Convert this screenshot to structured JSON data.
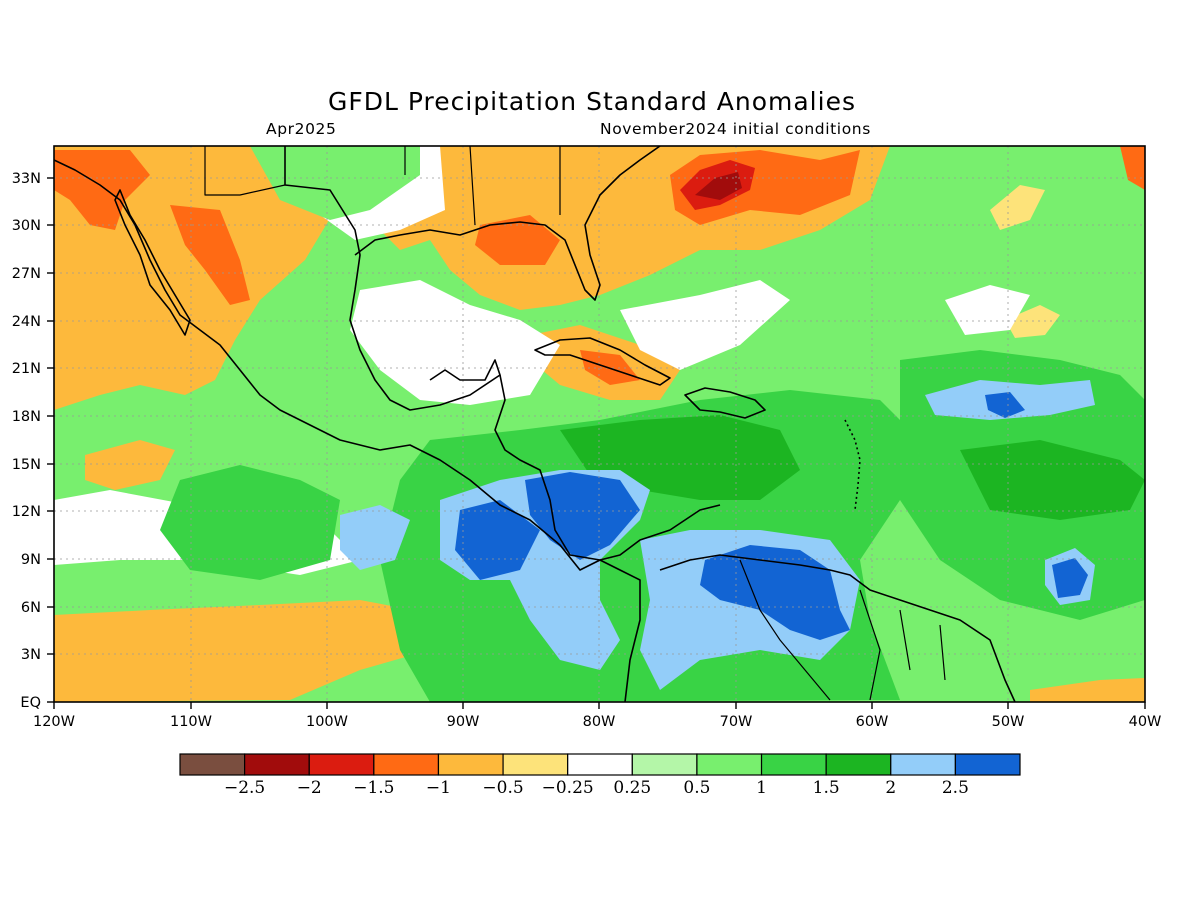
{
  "title": "GFDL Precipitation Standard Anomalies",
  "subtitle_left": "Apr2025",
  "subtitle_right": "November2024 initial conditions",
  "x_ticks": [
    "120W",
    "110W",
    "100W",
    "90W",
    "80W",
    "70W",
    "60W",
    "50W",
    "40W"
  ],
  "y_ticks": [
    "EQ",
    "3N",
    "6N",
    "9N",
    "12N",
    "15N",
    "18N",
    "21N",
    "24N",
    "27N",
    "30N",
    "33N"
  ],
  "colorbar": {
    "colors": [
      "#7a4e3f",
      "#a10c0c",
      "#db1c10",
      "#ff6a14",
      "#fdb93c",
      "#fde37a",
      "#ffffff",
      "#b4f6a8",
      "#78ef6e",
      "#39d345",
      "#1cb522",
      "#93cdf9",
      "#1264d3"
    ],
    "labels": [
      "−2.5",
      "−2",
      "−1.5",
      "−1",
      "−0.5",
      "−0.25",
      "0.25",
      "0.5",
      "1",
      "1.5",
      "2",
      "2.5"
    ]
  },
  "map_extent": {
    "lon": [
      -120,
      -40
    ],
    "lat": [
      0,
      35
    ]
  },
  "field_colors": {
    "light_green": "#78ef6e",
    "green": "#39d345",
    "dark_green": "#1cb522",
    "light_blue": "#93cdf9",
    "blue": "#1264d3",
    "pale_yellow": "#fde37a",
    "light_orange": "#fdb93c",
    "orange": "#ff6a14",
    "red": "#db1c10",
    "dark_red": "#a10c0c",
    "pale_green": "#b4f6a8",
    "white": "#ffffff"
  }
}
